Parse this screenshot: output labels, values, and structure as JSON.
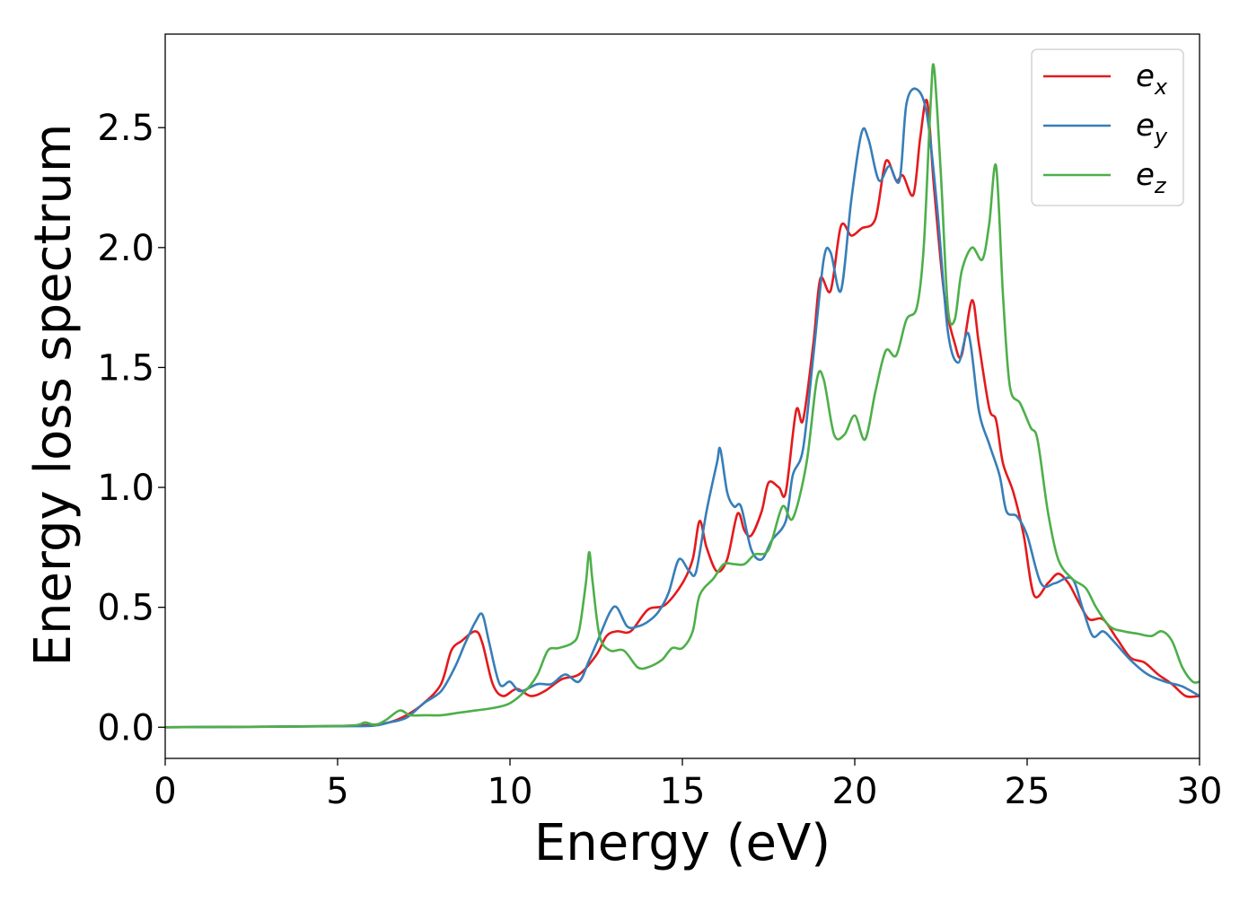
{
  "chart_data": {
    "type": "line",
    "title": "",
    "xlabel": "Energy (eV)",
    "ylabel": "Energy loss spectrum",
    "xlim": [
      0,
      30
    ],
    "ylim": [
      -0.13,
      2.89
    ],
    "xticks": [
      "0",
      "5",
      "10",
      "15",
      "20",
      "25",
      "30"
    ],
    "yticks": [
      "0.0",
      "0.5",
      "1.0",
      "1.5",
      "2.0",
      "2.5"
    ],
    "grid": false,
    "legend_position": "top-right",
    "series": [
      {
        "name": "e",
        "subscript": "x",
        "color": "#e41a1c",
        "points": [
          [
            0,
            0
          ],
          [
            3,
            0.002
          ],
          [
            5,
            0.005
          ],
          [
            6,
            0.01
          ],
          [
            6.5,
            0.02
          ],
          [
            7,
            0.05
          ],
          [
            7.5,
            0.1
          ],
          [
            8,
            0.18
          ],
          [
            8.3,
            0.32
          ],
          [
            8.6,
            0.36
          ],
          [
            9,
            0.4
          ],
          [
            9.2,
            0.35
          ],
          [
            9.5,
            0.18
          ],
          [
            9.8,
            0.13
          ],
          [
            10.2,
            0.16
          ],
          [
            10.6,
            0.13
          ],
          [
            11,
            0.15
          ],
          [
            11.5,
            0.2
          ],
          [
            12,
            0.22
          ],
          [
            12.5,
            0.3
          ],
          [
            12.8,
            0.38
          ],
          [
            13.1,
            0.4
          ],
          [
            13.5,
            0.4
          ],
          [
            14,
            0.49
          ],
          [
            14.5,
            0.51
          ],
          [
            15,
            0.6
          ],
          [
            15.3,
            0.7
          ],
          [
            15.5,
            0.86
          ],
          [
            15.7,
            0.75
          ],
          [
            16,
            0.65
          ],
          [
            16.3,
            0.7
          ],
          [
            16.6,
            0.89
          ],
          [
            16.8,
            0.82
          ],
          [
            17,
            0.8
          ],
          [
            17.3,
            0.9
          ],
          [
            17.5,
            1.02
          ],
          [
            17.8,
            1.0
          ],
          [
            18,
            0.98
          ],
          [
            18.3,
            1.32
          ],
          [
            18.5,
            1.28
          ],
          [
            18.8,
            1.6
          ],
          [
            19,
            1.87
          ],
          [
            19.3,
            1.82
          ],
          [
            19.6,
            2.09
          ],
          [
            19.9,
            2.05
          ],
          [
            20.2,
            2.08
          ],
          [
            20.6,
            2.12
          ],
          [
            20.9,
            2.36
          ],
          [
            21.2,
            2.28
          ],
          [
            21.4,
            2.3
          ],
          [
            21.7,
            2.22
          ],
          [
            21.9,
            2.46
          ],
          [
            22.1,
            2.61
          ],
          [
            22.3,
            2.25
          ],
          [
            22.6,
            1.8
          ],
          [
            22.9,
            1.6
          ],
          [
            23.1,
            1.55
          ],
          [
            23.4,
            1.78
          ],
          [
            23.6,
            1.6
          ],
          [
            23.9,
            1.33
          ],
          [
            24.1,
            1.28
          ],
          [
            24.3,
            1.1
          ],
          [
            24.6,
            0.98
          ],
          [
            24.9,
            0.8
          ],
          [
            25.2,
            0.55
          ],
          [
            25.6,
            0.6
          ],
          [
            25.9,
            0.64
          ],
          [
            26.2,
            0.6
          ],
          [
            26.5,
            0.52
          ],
          [
            26.8,
            0.45
          ],
          [
            27.2,
            0.45
          ],
          [
            27.6,
            0.37
          ],
          [
            28,
            0.29
          ],
          [
            28.4,
            0.27
          ],
          [
            28.8,
            0.22
          ],
          [
            29.2,
            0.18
          ],
          [
            29.6,
            0.13
          ],
          [
            30,
            0.13
          ]
        ]
      },
      {
        "name": "e",
        "subscript": "y",
        "color": "#377eb8",
        "points": [
          [
            0,
            0
          ],
          [
            3,
            0.002
          ],
          [
            5,
            0.004
          ],
          [
            6,
            0.006
          ],
          [
            6.5,
            0.02
          ],
          [
            7,
            0.04
          ],
          [
            7.5,
            0.1
          ],
          [
            8,
            0.15
          ],
          [
            8.4,
            0.25
          ],
          [
            8.7,
            0.35
          ],
          [
            9,
            0.44
          ],
          [
            9.2,
            0.47
          ],
          [
            9.4,
            0.35
          ],
          [
            9.7,
            0.18
          ],
          [
            10,
            0.19
          ],
          [
            10.3,
            0.15
          ],
          [
            10.8,
            0.18
          ],
          [
            11.2,
            0.18
          ],
          [
            11.6,
            0.22
          ],
          [
            12,
            0.19
          ],
          [
            12.3,
            0.28
          ],
          [
            12.6,
            0.38
          ],
          [
            12.9,
            0.48
          ],
          [
            13.1,
            0.5
          ],
          [
            13.4,
            0.42
          ],
          [
            13.7,
            0.42
          ],
          [
            14,
            0.44
          ],
          [
            14.3,
            0.48
          ],
          [
            14.6,
            0.56
          ],
          [
            14.9,
            0.7
          ],
          [
            15.2,
            0.65
          ],
          [
            15.4,
            0.65
          ],
          [
            15.7,
            0.9
          ],
          [
            16,
            1.1
          ],
          [
            16.1,
            1.16
          ],
          [
            16.3,
            0.98
          ],
          [
            16.5,
            0.92
          ],
          [
            16.7,
            0.92
          ],
          [
            17,
            0.74
          ],
          [
            17.3,
            0.7
          ],
          [
            17.6,
            0.78
          ],
          [
            18,
            0.86
          ],
          [
            18.2,
            1.05
          ],
          [
            18.5,
            1.16
          ],
          [
            18.8,
            1.55
          ],
          [
            19.1,
            1.95
          ],
          [
            19.3,
            1.98
          ],
          [
            19.6,
            1.82
          ],
          [
            19.9,
            2.2
          ],
          [
            20.2,
            2.48
          ],
          [
            20.4,
            2.45
          ],
          [
            20.7,
            2.28
          ],
          [
            21,
            2.34
          ],
          [
            21.3,
            2.28
          ],
          [
            21.5,
            2.6
          ],
          [
            21.8,
            2.66
          ],
          [
            22.1,
            2.55
          ],
          [
            22.4,
            2.15
          ],
          [
            22.7,
            1.65
          ],
          [
            23,
            1.52
          ],
          [
            23.3,
            1.64
          ],
          [
            23.6,
            1.32
          ],
          [
            23.9,
            1.18
          ],
          [
            24.2,
            1.05
          ],
          [
            24.4,
            0.9
          ],
          [
            24.7,
            0.88
          ],
          [
            25,
            0.8
          ],
          [
            25.4,
            0.6
          ],
          [
            25.8,
            0.6
          ],
          [
            26.3,
            0.62
          ],
          [
            26.6,
            0.5
          ],
          [
            26.9,
            0.38
          ],
          [
            27.2,
            0.4
          ],
          [
            27.5,
            0.36
          ],
          [
            28,
            0.28
          ],
          [
            28.5,
            0.22
          ],
          [
            29,
            0.19
          ],
          [
            29.5,
            0.17
          ],
          [
            30,
            0.13
          ]
        ]
      },
      {
        "name": "e",
        "subscript": "z",
        "color": "#4daf4a",
        "points": [
          [
            0,
            0
          ],
          [
            3,
            0.002
          ],
          [
            5,
            0.005
          ],
          [
            5.6,
            0.01
          ],
          [
            5.8,
            0.02
          ],
          [
            6.1,
            0.01
          ],
          [
            6.4,
            0.03
          ],
          [
            6.8,
            0.07
          ],
          [
            7.1,
            0.05
          ],
          [
            7.5,
            0.05
          ],
          [
            8,
            0.05
          ],
          [
            8.5,
            0.06
          ],
          [
            9,
            0.07
          ],
          [
            9.5,
            0.08
          ],
          [
            10,
            0.1
          ],
          [
            10.5,
            0.16
          ],
          [
            10.8,
            0.22
          ],
          [
            11.1,
            0.32
          ],
          [
            11.4,
            0.33
          ],
          [
            11.8,
            0.35
          ],
          [
            12,
            0.4
          ],
          [
            12.2,
            0.6
          ],
          [
            12.3,
            0.73
          ],
          [
            12.4,
            0.6
          ],
          [
            12.6,
            0.38
          ],
          [
            12.9,
            0.32
          ],
          [
            13.3,
            0.32
          ],
          [
            13.7,
            0.25
          ],
          [
            14,
            0.25
          ],
          [
            14.4,
            0.28
          ],
          [
            14.7,
            0.33
          ],
          [
            15,
            0.33
          ],
          [
            15.3,
            0.4
          ],
          [
            15.5,
            0.55
          ],
          [
            15.9,
            0.62
          ],
          [
            16.2,
            0.68
          ],
          [
            16.5,
            0.68
          ],
          [
            16.8,
            0.68
          ],
          [
            17.1,
            0.72
          ],
          [
            17.5,
            0.74
          ],
          [
            17.9,
            0.92
          ],
          [
            18.2,
            0.87
          ],
          [
            18.6,
            1.1
          ],
          [
            18.9,
            1.45
          ],
          [
            19.1,
            1.45
          ],
          [
            19.4,
            1.22
          ],
          [
            19.7,
            1.22
          ],
          [
            20,
            1.3
          ],
          [
            20.3,
            1.2
          ],
          [
            20.6,
            1.4
          ],
          [
            20.9,
            1.57
          ],
          [
            21.2,
            1.55
          ],
          [
            21.5,
            1.7
          ],
          [
            21.8,
            1.75
          ],
          [
            22,
            2.0
          ],
          [
            22.2,
            2.6
          ],
          [
            22.3,
            2.75
          ],
          [
            22.5,
            2.3
          ],
          [
            22.7,
            1.75
          ],
          [
            22.9,
            1.7
          ],
          [
            23.1,
            1.9
          ],
          [
            23.4,
            2.0
          ],
          [
            23.7,
            1.95
          ],
          [
            23.9,
            2.1
          ],
          [
            24.1,
            2.34
          ],
          [
            24.3,
            1.8
          ],
          [
            24.5,
            1.42
          ],
          [
            24.8,
            1.35
          ],
          [
            25.1,
            1.25
          ],
          [
            25.3,
            1.2
          ],
          [
            25.6,
            0.9
          ],
          [
            25.9,
            0.7
          ],
          [
            26.3,
            0.62
          ],
          [
            26.7,
            0.58
          ],
          [
            27,
            0.5
          ],
          [
            27.4,
            0.42
          ],
          [
            27.8,
            0.4
          ],
          [
            28.2,
            0.39
          ],
          [
            28.6,
            0.38
          ],
          [
            28.9,
            0.4
          ],
          [
            29.2,
            0.36
          ],
          [
            29.5,
            0.25
          ],
          [
            29.8,
            0.19
          ],
          [
            30,
            0.19
          ]
        ]
      }
    ]
  }
}
